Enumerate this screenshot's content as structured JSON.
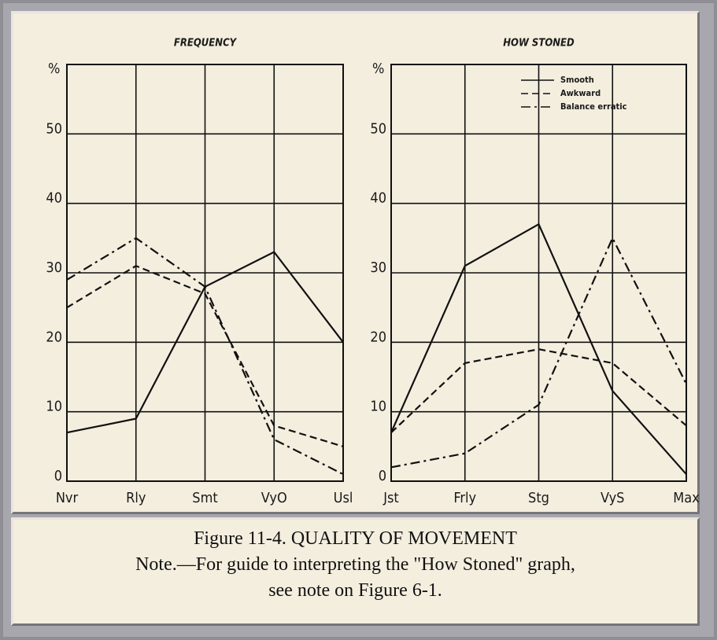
{
  "chart_data": [
    {
      "type": "line",
      "title": "FREQUENCY",
      "ylabel": "%",
      "categories": [
        "Nvr",
        "Rly",
        "Smt",
        "VyO",
        "Usl"
      ],
      "ylim": [
        0,
        60
      ],
      "yticks": [
        0,
        10,
        20,
        30,
        40,
        50
      ],
      "grid": true,
      "series": [
        {
          "color": "#111111",
          "dash": "solid",
          "values": [
            7,
            9,
            28,
            33,
            20
          ]
        },
        {
          "color": "#111111",
          "dash": "dashed",
          "values": [
            25,
            31,
            27,
            8,
            5
          ]
        },
        {
          "color": "#111111",
          "dash": "dashdot",
          "values": [
            29,
            35,
            28,
            6,
            1
          ]
        }
      ]
    },
    {
      "type": "line",
      "title": "HOW STONED",
      "ylabel": "%",
      "categories": [
        "Jst",
        "Frly",
        "Stg",
        "VyS",
        "Max"
      ],
      "ylim": [
        0,
        60
      ],
      "yticks": [
        0,
        10,
        20,
        30,
        40,
        50
      ],
      "grid": true,
      "legend": "upper right",
      "series": [
        {
          "name": "Smooth",
          "color": "#111111",
          "dash": "solid",
          "values": [
            7,
            31,
            37,
            13,
            1
          ]
        },
        {
          "name": "Awkward",
          "color": "#111111",
          "dash": "dashed",
          "values": [
            7,
            17,
            19,
            17,
            8
          ]
        },
        {
          "name": "Balance erratic",
          "color": "#111111",
          "dash": "dashdot",
          "values": [
            2,
            4,
            11,
            35,
            14
          ]
        }
      ]
    }
  ],
  "caption": {
    "title": "Figure 11-4. QUALITY OF MOVEMENT",
    "note_line1": "Note.—For guide to interpreting the \"How Stoned\" graph,",
    "note_line2": "see note on Figure 6-1."
  }
}
